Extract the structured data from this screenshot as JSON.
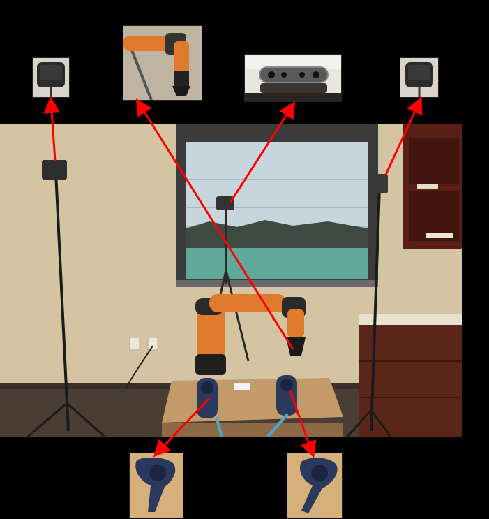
{
  "scene": {
    "description_icons": [
      "lighthouse-base-station-icon",
      "robot-arm-icon",
      "depth-camera-icon",
      "vr-controller-icon"
    ],
    "colors": {
      "wall": "#d9c9a8",
      "floor": "#4a3d33",
      "robot_orange": "#e07a2c",
      "arrow_red": "#ff0000",
      "controller_blue": "#2b3a5c",
      "table_wood": "#c39a6a"
    }
  }
}
